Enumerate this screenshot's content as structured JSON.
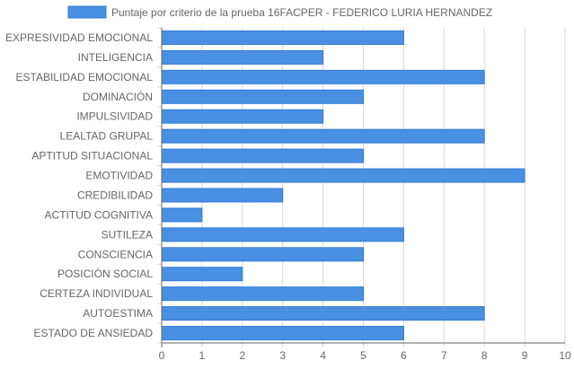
{
  "chart_data": {
    "type": "bar",
    "orientation": "horizontal",
    "categories": [
      "EXPRESIVIDAD EMOCIONAL",
      "INTELIGENCIA",
      "ESTABILIDAD EMOCIONAL",
      "DOMINACIÓN",
      "IMPULSIVIDAD",
      "LEALTAD GRUPAL",
      "APTITUD SITUACIONAL",
      "EMOTIVIDAD",
      "CREDIBILIDAD",
      "ACTITUD COGNITIVA",
      "SUTILEZA",
      "CONSCIENCIA",
      "POSICIÓN SOCIAL",
      "CERTEZA INDIVIDUAL",
      "AUTOESTIMA",
      "ESTADO DE ANSIEDAD"
    ],
    "series": [
      {
        "name": "Puntaje por criterio de la prueba 16FACPER - FEDERICO LURIA HERNANDEZ",
        "values": [
          6,
          4,
          8,
          5,
          4,
          8,
          5,
          9,
          3,
          1,
          6,
          5,
          2,
          5,
          8,
          6
        ],
        "color": "#4a90e2"
      }
    ],
    "x_ticks": [
      "0",
      "1",
      "2",
      "3",
      "4",
      "5",
      "6",
      "7",
      "8",
      "9",
      "10"
    ],
    "xlim": [
      0,
      10
    ],
    "grid": true,
    "legend_position": "top-center"
  }
}
